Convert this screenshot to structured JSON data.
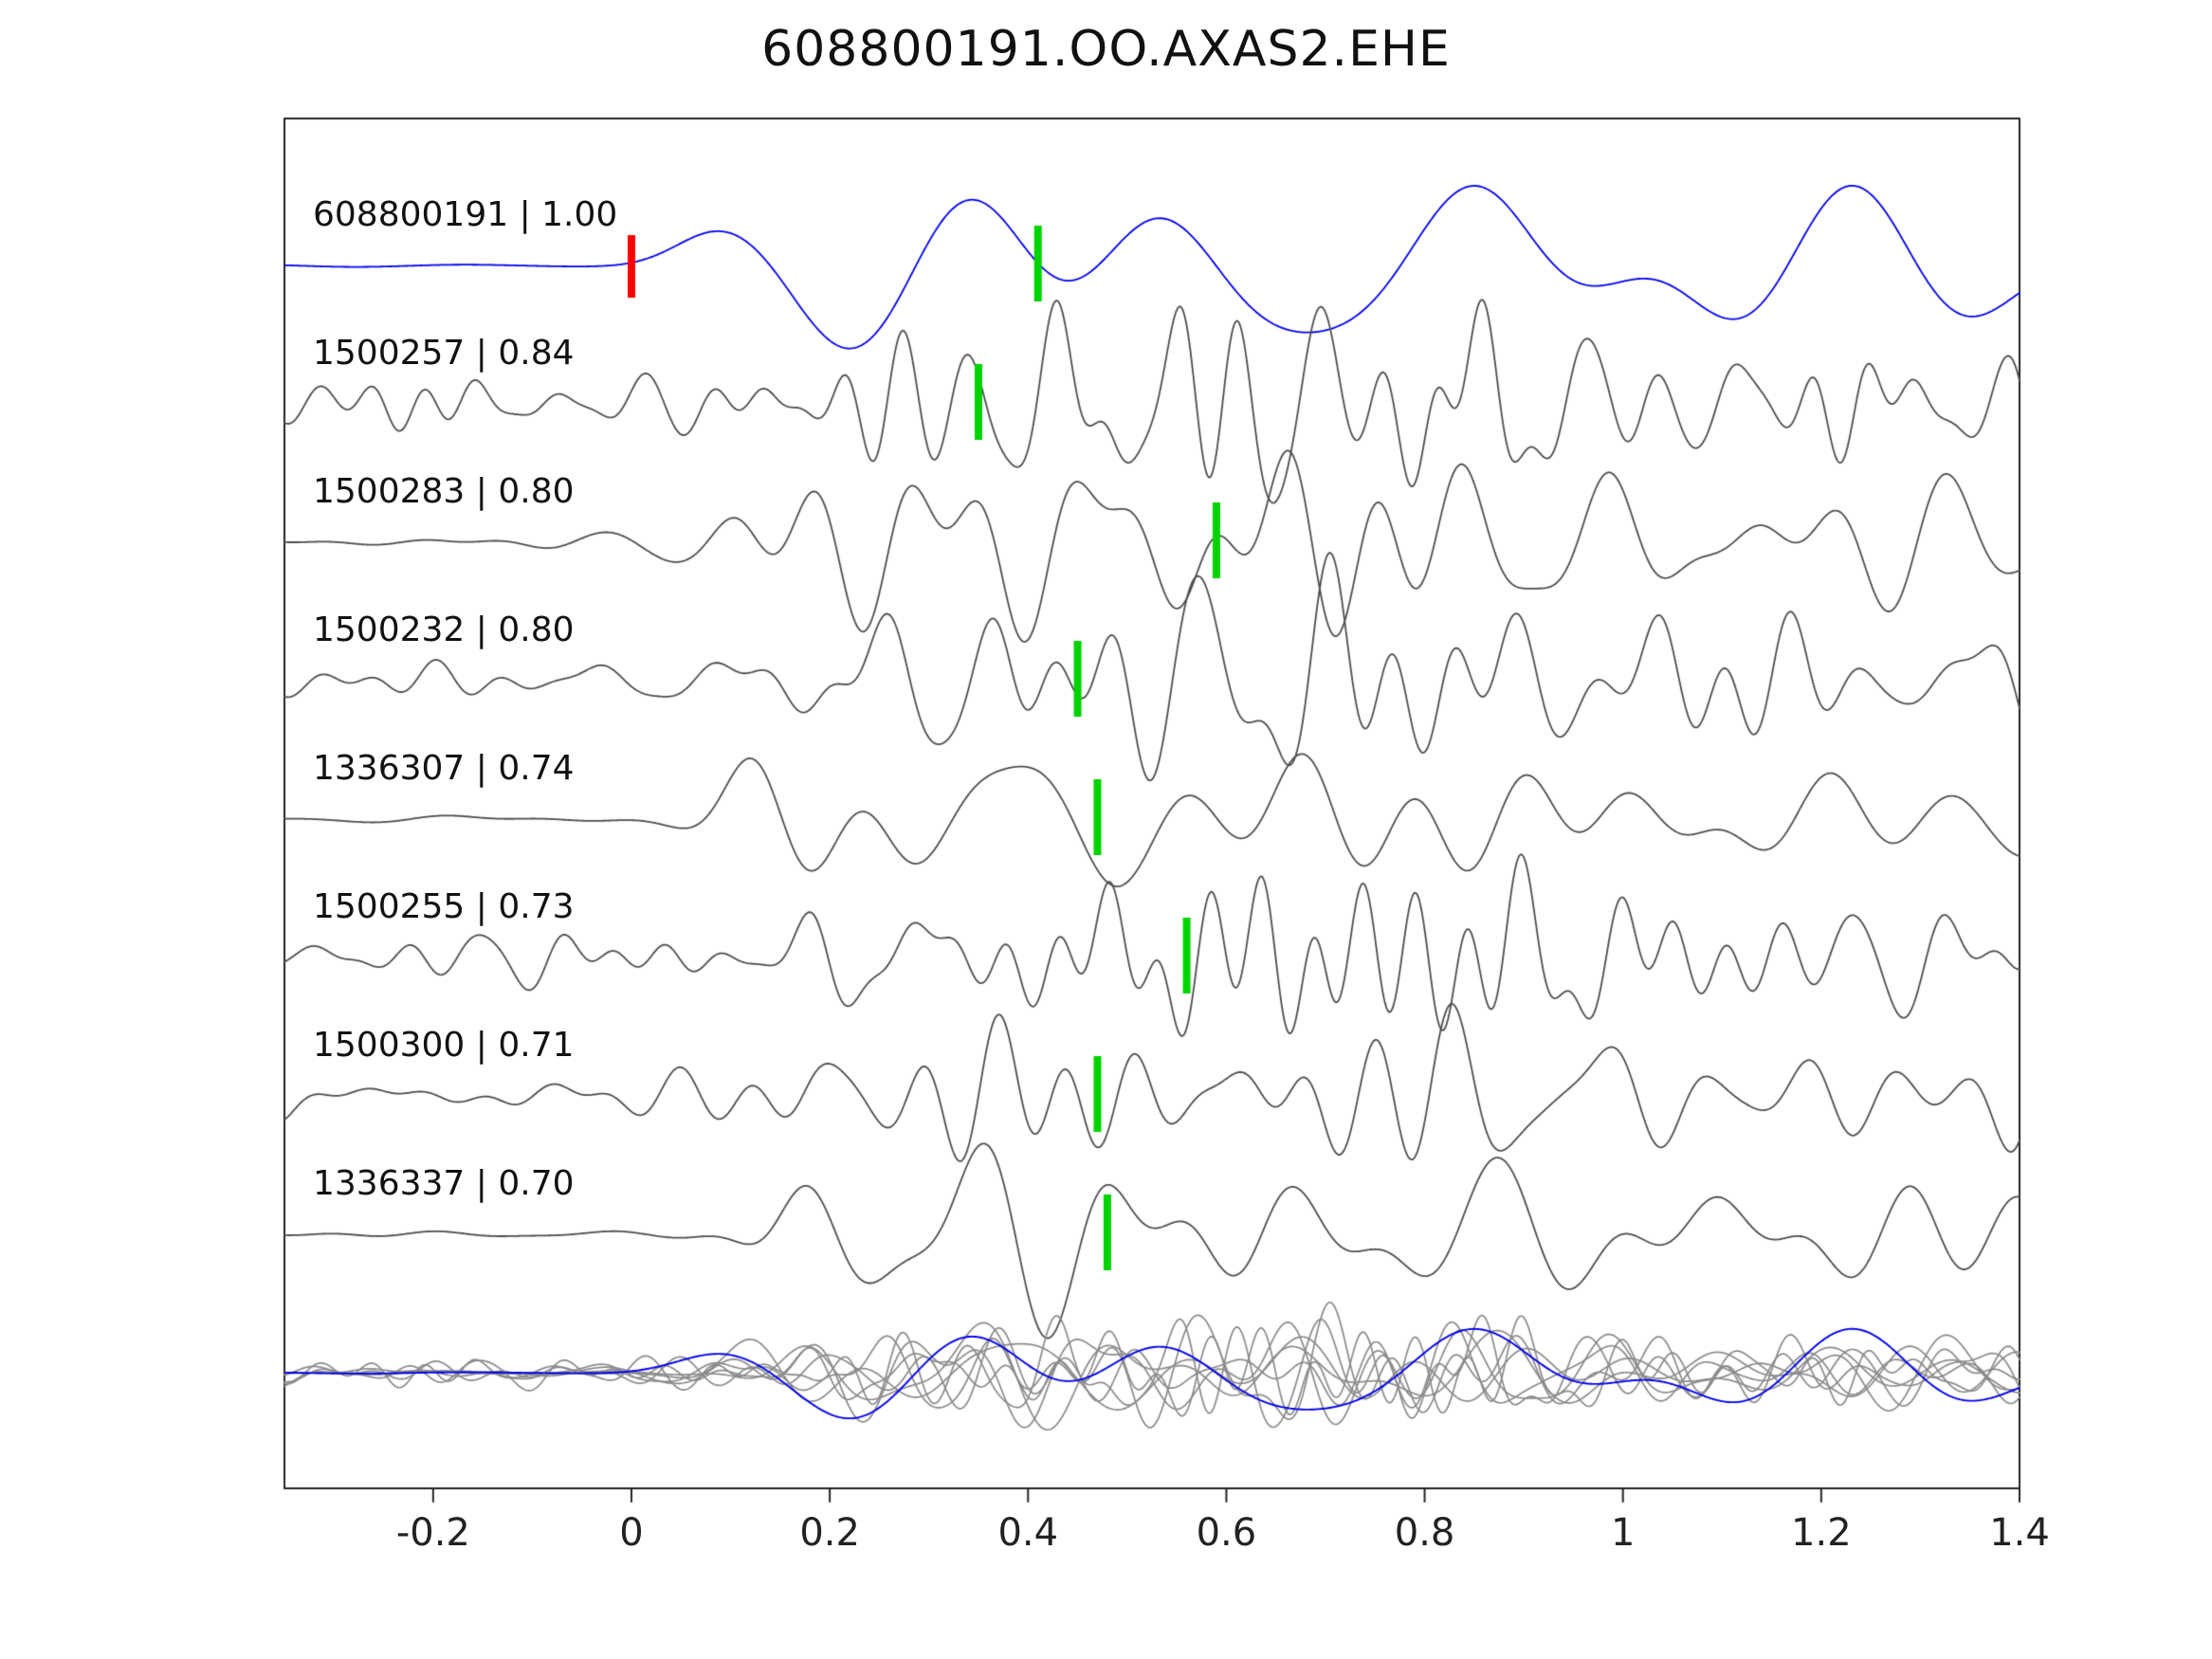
{
  "chart_data": {
    "type": "line",
    "title": "608800191.OO.AXAS2.EHE",
    "xlabel": "",
    "ylabel": "",
    "x_range": [
      -0.35,
      1.4
    ],
    "grid": false,
    "legend": "none",
    "x_ticks": [
      {
        "value": -0.2,
        "label": "-0.2"
      },
      {
        "value": 0,
        "label": "0"
      },
      {
        "value": 0.2,
        "label": "0.2"
      },
      {
        "value": 0.4,
        "label": "0.4"
      },
      {
        "value": 0.6,
        "label": "0.6"
      },
      {
        "value": 0.8,
        "label": "0.8"
      },
      {
        "value": 1,
        "label": "1"
      },
      {
        "value": 1.2,
        "label": "1.2"
      },
      {
        "value": 1.4,
        "label": "1.4"
      }
    ],
    "colors": {
      "reference_trace": "#0000ee",
      "match_trace": "#4d4d4d",
      "overlay_trace": "#8a8a8a",
      "reference_pick": "#ff0000",
      "pick": "#00d400",
      "axis": "#222222"
    },
    "traces": [
      {
        "id": "608800191",
        "correlation": 1.0,
        "label": "608800191 | 1.00",
        "is_reference": true,
        "red_pick": 0.0,
        "green_pick": 0.41
      },
      {
        "id": "1500257",
        "correlation": 0.84,
        "label": "1500257 | 0.84",
        "is_reference": false,
        "green_pick": 0.35
      },
      {
        "id": "1500283",
        "correlation": 0.8,
        "label": "1500283 | 0.80",
        "is_reference": false,
        "green_pick": 0.59
      },
      {
        "id": "1500232",
        "correlation": 0.8,
        "label": "1500232 | 0.80",
        "is_reference": false,
        "green_pick": 0.45
      },
      {
        "id": "1336307",
        "correlation": 0.74,
        "label": "1336307 | 0.74",
        "is_reference": false,
        "green_pick": 0.47
      },
      {
        "id": "1500255",
        "correlation": 0.73,
        "label": "1500255 | 0.73",
        "is_reference": false,
        "green_pick": 0.56
      },
      {
        "id": "1500300",
        "correlation": 0.71,
        "label": "1500300 | 0.71",
        "is_reference": false,
        "green_pick": 0.47
      },
      {
        "id": "1336337",
        "correlation": 0.7,
        "label": "1336337 | 0.70",
        "is_reference": false,
        "green_pick": 0.48
      }
    ],
    "overlay_row": {
      "description": "all matched traces overlaid with reference trace",
      "includes_reference": true
    }
  }
}
